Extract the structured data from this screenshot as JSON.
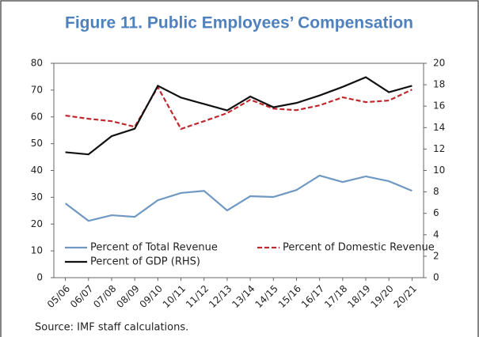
{
  "chart_data": {
    "type": "line",
    "title": "Figure 11. Public Employees’ Compensation",
    "source": "Source: IMF staff calculations.",
    "categories": [
      "05/06",
      "06/07",
      "07/08",
      "08/09",
      "09/10",
      "10/11",
      "11/12",
      "12/13",
      "13/14",
      "14/15",
      "15/16",
      "16/17",
      "17/18",
      "18/19",
      "19/20",
      "20/21"
    ],
    "series": [
      {
        "name": "Percent of Total Revenue",
        "color": "#6f98c3",
        "dash": false,
        "values": [
          27.7,
          21.2,
          23.3,
          22.7,
          28.9,
          31.6,
          32.4,
          25.1,
          30.4,
          30.1,
          32.7,
          38.1,
          35.7,
          37.8,
          36.0,
          32.4
        ]
      },
      {
        "name": "Percent of Domestic Revenue",
        "color": "#c0282d",
        "dash": true,
        "values": [
          60.5,
          59.3,
          58.4,
          56.3,
          71.1,
          55.5,
          58.4,
          61.4,
          66.4,
          63.1,
          62.5,
          64.3,
          67.3,
          65.5,
          66.1,
          70.2
        ]
      },
      {
        "name": "Percent of GDP (RHS)",
        "color": "#111111",
        "dash": false,
        "axis": "y2",
        "values": [
          11.7,
          11.5,
          13.2,
          13.9,
          17.9,
          16.8,
          16.2,
          15.6,
          16.9,
          15.9,
          16.3,
          17.0,
          17.8,
          18.7,
          17.3,
          17.9
        ]
      }
    ],
    "ylim": [
      0,
      80
    ],
    "yticks": [
      0,
      10,
      20,
      30,
      40,
      50,
      60,
      70,
      80
    ],
    "y2lim": [
      0,
      20
    ],
    "y2ticks": [
      0,
      2,
      4,
      6,
      8,
      10,
      12,
      14,
      16,
      18,
      20
    ],
    "grid": false
  }
}
